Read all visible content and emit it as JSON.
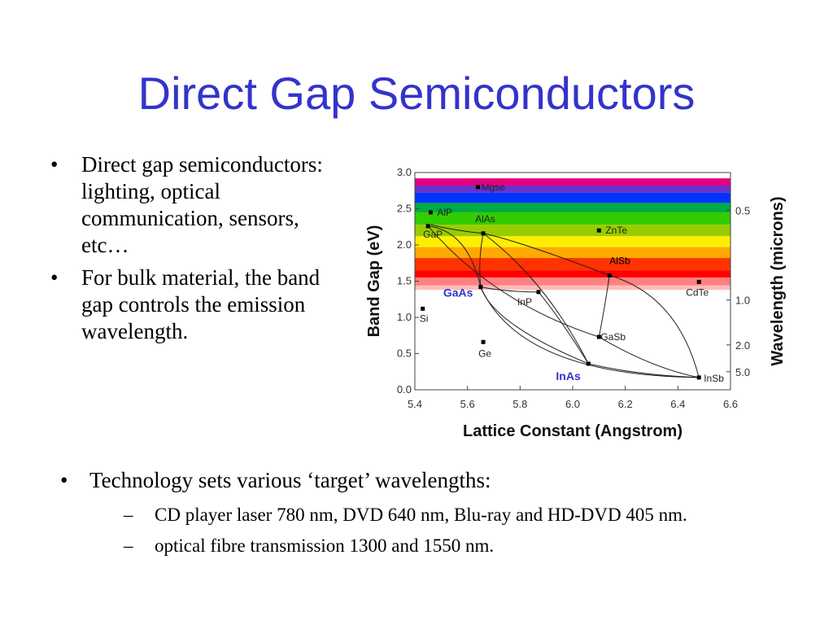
{
  "slide": {
    "title": "Direct Gap Semiconductors",
    "bullet_glyph": "•",
    "dash_glyph": "–",
    "left_bullets": [
      "Direct gap semiconductors: lighting, optical communication, sensors, etc…",
      "For bulk material, the band gap controls the emission wavelength."
    ],
    "bottom": {
      "main": "Technology sets various ‘target’ wavelengths:",
      "sub": [
        "CD player laser 780 nm, DVD 640 nm, Blu-ray and HD-DVD 405 nm.",
        "optical fibre transmission 1300 and 1550 nm."
      ]
    }
  },
  "chart_data": {
    "type": "scatter",
    "xlabel": "Lattice Constant (Angstrom)",
    "ylabel": "Band Gap (eV)",
    "y2label": "Wavelength (microns)",
    "xlim": [
      5.4,
      6.6
    ],
    "ylim": [
      0.0,
      3.0
    ],
    "x_ticks": [
      "5.4",
      "5.6",
      "5.8",
      "6.0",
      "6.2",
      "6.4",
      "6.6"
    ],
    "y_ticks": [
      "0.0",
      "0.5",
      "1.0",
      "1.5",
      "2.0",
      "2.5",
      "3.0"
    ],
    "y2_ticks": [
      {
        "label": "0.5",
        "ev": 2.48
      },
      {
        "label": "1.0",
        "ev": 1.24
      },
      {
        "label": "2.0",
        "ev": 0.62
      },
      {
        "label": "5.0",
        "ev": 0.25
      }
    ],
    "visible_spectrum_bands": [
      {
        "from": 2.82,
        "to": 2.92,
        "color": "#e6007e"
      },
      {
        "from": 2.72,
        "to": 2.82,
        "color": "#6633cc"
      },
      {
        "from": 2.58,
        "to": 2.72,
        "color": "#0033ff"
      },
      {
        "from": 2.45,
        "to": 2.58,
        "color": "#00aa44"
      },
      {
        "from": 2.28,
        "to": 2.45,
        "color": "#33cc00"
      },
      {
        "from": 2.12,
        "to": 2.28,
        "color": "#99cc00"
      },
      {
        "from": 1.97,
        "to": 2.12,
        "color": "#ffee00"
      },
      {
        "from": 1.82,
        "to": 1.97,
        "color": "#ffaa00"
      },
      {
        "from": 1.65,
        "to": 1.82,
        "color": "#ff3300"
      },
      {
        "from": 1.55,
        "to": 1.65,
        "color": "#ff0000"
      },
      {
        "from": 1.44,
        "to": 1.55,
        "color": "#ff8080"
      },
      {
        "from": 1.38,
        "to": 1.44,
        "color": "#ffbbbb"
      }
    ],
    "points": [
      {
        "label": "Si",
        "x": 5.43,
        "y": 1.12,
        "lx": -4,
        "ly": 16
      },
      {
        "label": "Ge",
        "x": 5.66,
        "y": 0.66,
        "lx": -6,
        "ly": 18
      },
      {
        "label": "AlP",
        "x": 5.46,
        "y": 2.45,
        "lx": 8,
        "ly": 4
      },
      {
        "label": "GaP",
        "x": 5.45,
        "y": 2.26,
        "lx": -6,
        "ly": 14
      },
      {
        "label": "AlAs",
        "x": 5.66,
        "y": 2.16,
        "lx": -10,
        "ly": -14
      },
      {
        "label": "GaAs",
        "x": 5.65,
        "y": 1.42,
        "lx": -46,
        "ly": 12,
        "color": "#3333cc",
        "bold": true,
        "size": 14
      },
      {
        "label": "InP",
        "x": 5.87,
        "y": 1.35,
        "lx": -26,
        "ly": 16
      },
      {
        "label": "ZnTe",
        "x": 6.1,
        "y": 2.2,
        "lx": 8,
        "ly": 4
      },
      {
        "label": "AlSb",
        "x": 6.14,
        "y": 1.58,
        "lx": 0,
        "ly": -14,
        "color": "#000000"
      },
      {
        "label": "CdTe",
        "x": 6.48,
        "y": 1.49,
        "lx": -16,
        "ly": 17
      },
      {
        "label": "GaSb",
        "x": 6.1,
        "y": 0.73,
        "lx": 2,
        "ly": 4
      },
      {
        "label": "InAs",
        "x": 6.06,
        "y": 0.36,
        "lx": -40,
        "ly": 20,
        "color": "#3333cc",
        "bold": true,
        "size": 14
      },
      {
        "label": "InSb",
        "x": 6.48,
        "y": 0.17,
        "lx": 6,
        "ly": 5
      },
      {
        "label": "Mgse",
        "x": 5.64,
        "y": 2.8,
        "lx": 4,
        "ly": 4
      }
    ],
    "curves": [
      [
        [
          5.45,
          2.26
        ],
        [
          5.6,
          2.2
        ],
        [
          5.65,
          1.42
        ]
      ],
      [
        [
          5.46,
          2.28
        ],
        [
          5.55,
          2.2
        ],
        [
          5.66,
          2.16
        ]
      ],
      [
        [
          5.66,
          2.16
        ],
        [
          5.8,
          2.05
        ],
        [
          6.14,
          1.58
        ]
      ],
      [
        [
          5.66,
          2.16
        ],
        [
          5.64,
          1.8
        ],
        [
          5.65,
          1.42
        ]
      ],
      [
        [
          5.65,
          1.42
        ],
        [
          5.75,
          1.35
        ],
        [
          5.87,
          1.35
        ]
      ],
      [
        [
          5.87,
          1.35
        ],
        [
          5.95,
          1.0
        ],
        [
          6.06,
          0.36
        ]
      ],
      [
        [
          5.45,
          2.26
        ],
        [
          5.7,
          1.2
        ],
        [
          6.1,
          0.73
        ]
      ],
      [
        [
          6.1,
          0.73
        ],
        [
          6.12,
          1.1
        ],
        [
          6.14,
          1.58
        ]
      ],
      [
        [
          6.14,
          1.58
        ],
        [
          6.4,
          1.3
        ],
        [
          6.48,
          0.17
        ]
      ],
      [
        [
          5.65,
          1.42
        ],
        [
          5.7,
          0.9
        ],
        [
          6.06,
          0.36
        ]
      ],
      [
        [
          5.65,
          1.42
        ],
        [
          5.8,
          0.2
        ],
        [
          6.48,
          0.17
        ]
      ],
      [
        [
          6.1,
          0.73
        ],
        [
          6.3,
          0.3
        ],
        [
          6.48,
          0.17
        ]
      ],
      [
        [
          6.06,
          0.36
        ],
        [
          6.25,
          0.2
        ],
        [
          6.48,
          0.17
        ]
      ],
      [
        [
          5.66,
          2.16
        ],
        [
          5.9,
          1.5
        ],
        [
          6.06,
          0.36
        ]
      ]
    ]
  }
}
